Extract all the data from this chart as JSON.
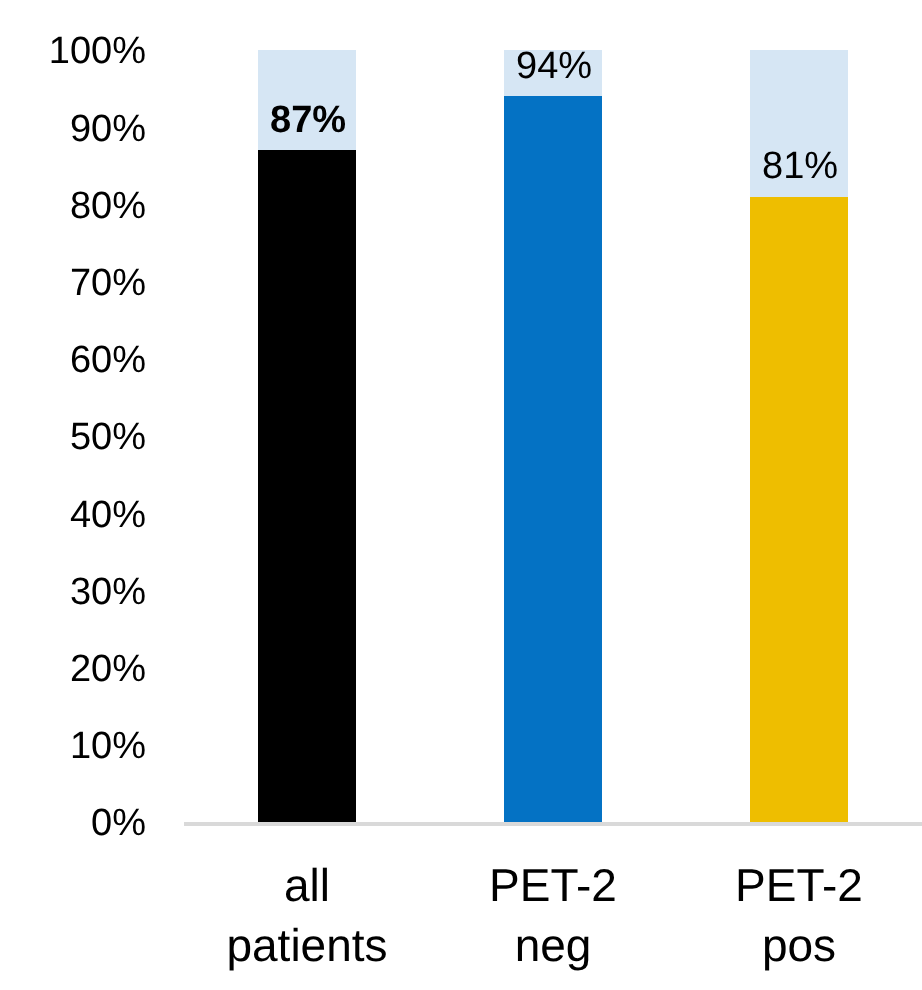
{
  "chart_data": {
    "type": "bar",
    "stacked": true,
    "categories": [
      "all patients",
      "PET-2 neg",
      "PET-2 pos"
    ],
    "series": [
      {
        "colors": [
          "#000000",
          "#0472c4",
          "#eebe00"
        ],
        "values": [
          87,
          94,
          81
        ],
        "value_labels": [
          "87%",
          "94%",
          "81%"
        ]
      },
      {
        "color": "#d6e6f4",
        "values": [
          13,
          6,
          19
        ]
      }
    ],
    "ylim": [
      0,
      100
    ],
    "yticks": [
      {
        "value": 0,
        "label": "0%"
      },
      {
        "value": 10,
        "label": "10%"
      },
      {
        "value": 20,
        "label": "20%"
      },
      {
        "value": 30,
        "label": "30%"
      },
      {
        "value": 40,
        "label": "40%"
      },
      {
        "value": 50,
        "label": "50%"
      },
      {
        "value": 60,
        "label": "60%"
      },
      {
        "value": 70,
        "label": "70%"
      },
      {
        "value": 80,
        "label": "80%"
      },
      {
        "value": 90,
        "label": "90%"
      },
      {
        "value": 100,
        "label": "100%"
      }
    ],
    "grid": false
  }
}
